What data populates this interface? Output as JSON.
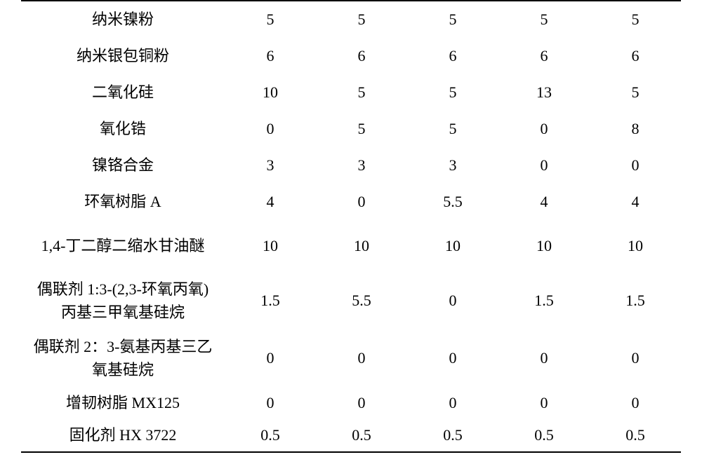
{
  "table": {
    "background_color": "#ffffff",
    "rule_color": "#000000",
    "text_color": "#000000",
    "label_font": "KaiTi",
    "value_font": "Times New Roman",
    "label_fontsize": 22,
    "value_fontsize": 22,
    "columns_count": 5,
    "rows": [
      {
        "label": "纳米镍粉",
        "values": [
          "5",
          "5",
          "5",
          "5",
          "5"
        ],
        "height": "normal"
      },
      {
        "label": "纳米银包铜粉",
        "values": [
          "6",
          "6",
          "6",
          "6",
          "6"
        ],
        "height": "normal"
      },
      {
        "label": "二氧化硅",
        "values": [
          "10",
          "5",
          "5",
          "13",
          "5"
        ],
        "height": "normal"
      },
      {
        "label": "氧化锆",
        "values": [
          "0",
          "5",
          "5",
          "0",
          "8"
        ],
        "height": "normal"
      },
      {
        "label": "镍铬合金",
        "values": [
          "3",
          "3",
          "3",
          "0",
          "0"
        ],
        "height": "normal"
      },
      {
        "label": "环氧树脂 A",
        "values": [
          "4",
          "0",
          "5.5",
          "4",
          "4"
        ],
        "height": "normal"
      },
      {
        "label": "1,4-丁二醇二缩水甘油醚",
        "values": [
          "10",
          "10",
          "10",
          "10",
          "10"
        ],
        "height": "tall"
      },
      {
        "label": "偶联剂 1:3-(2,3-环氧丙氧)\n丙基三甲氧基硅烷",
        "values": [
          "1.5",
          "5.5",
          "0",
          "1.5",
          "1.5"
        ],
        "height": "two"
      },
      {
        "label": "偶联剂 2：3-氨基丙基三乙\n氧基硅烷",
        "values": [
          "0",
          "0",
          "0",
          "0",
          "0"
        ],
        "height": "two"
      },
      {
        "label": "增韧树脂 MX125",
        "values": [
          "0",
          "0",
          "0",
          "0",
          "0"
        ],
        "height": "short"
      },
      {
        "label": "固化剂 HX 3722",
        "values": [
          "0.5",
          "0.5",
          "0.5",
          "0.5",
          "0.5"
        ],
        "height": "short"
      }
    ]
  }
}
